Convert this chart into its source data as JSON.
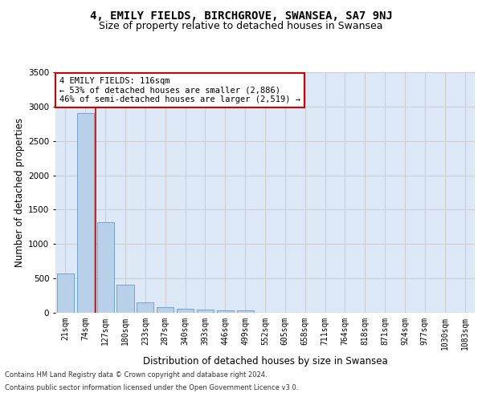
{
  "title": "4, EMILY FIELDS, BIRCHGROVE, SWANSEA, SA7 9NJ",
  "subtitle": "Size of property relative to detached houses in Swansea",
  "xlabel": "Distribution of detached houses by size in Swansea",
  "ylabel": "Number of detached properties",
  "footer_line1": "Contains HM Land Registry data © Crown copyright and database right 2024.",
  "footer_line2": "Contains public sector information licensed under the Open Government Licence v3.0.",
  "bar_labels": [
    "21sqm",
    "74sqm",
    "127sqm",
    "180sqm",
    "233sqm",
    "287sqm",
    "340sqm",
    "393sqm",
    "446sqm",
    "499sqm",
    "552sqm",
    "605sqm",
    "658sqm",
    "711sqm",
    "764sqm",
    "818sqm",
    "871sqm",
    "924sqm",
    "977sqm",
    "1030sqm",
    "1083sqm"
  ],
  "bar_values": [
    575,
    2900,
    1320,
    410,
    150,
    80,
    55,
    50,
    40,
    35,
    5,
    5,
    5,
    5,
    5,
    5,
    5,
    5,
    5,
    5,
    5
  ],
  "bar_color": "#b8d0e8",
  "bar_edge_color": "#6699cc",
  "red_line_x": 1.5,
  "annotation_text": "4 EMILY FIELDS: 116sqm\n← 53% of detached houses are smaller (2,886)\n46% of semi-detached houses are larger (2,519) →",
  "annotation_box_color": "#ffffff",
  "annotation_box_edgecolor": "#cc0000",
  "ylim": [
    0,
    3500
  ],
  "yticks": [
    0,
    500,
    1000,
    1500,
    2000,
    2500,
    3000,
    3500
  ],
  "grid_color": "#cccccc",
  "bg_color": "#dce8f5",
  "title_fontsize": 10,
  "subtitle_fontsize": 9,
  "xlabel_fontsize": 8.5,
  "ylabel_fontsize": 8.5,
  "tick_fontsize": 7,
  "annotation_fontsize": 7.5,
  "footer_fontsize": 6
}
